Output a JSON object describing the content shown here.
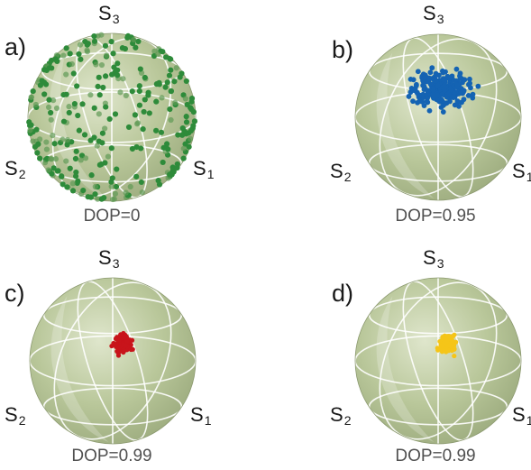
{
  "panels": [
    {
      "tag": "a)",
      "s3": "3",
      "s2": "2",
      "s1": "1",
      "axis_letter": "S",
      "dop": "DOP=0",
      "dot_color": "#2e8b3a",
      "distribution": "uniform-sphere"
    },
    {
      "tag": "b)",
      "s3": "3",
      "s2": "2",
      "s1": "1",
      "axis_letter": "S",
      "dop": "DOP=0.95",
      "dot_color": "#1463b3",
      "distribution": "cluster-wide"
    },
    {
      "tag": "c)",
      "s3": "3",
      "s2": "2",
      "s1": "1",
      "axis_letter": "S",
      "dop": "DOP=0.99",
      "dot_color": "#c8141b",
      "distribution": "cluster-tight"
    },
    {
      "tag": "d)",
      "s3": "3",
      "s2": "2",
      "s1": "1",
      "axis_letter": "S",
      "dop": "DOP=0.99",
      "dot_color": "#f5c518",
      "distribution": "cluster-tight"
    }
  ],
  "colors": {
    "sphere": "#b9c79a",
    "grid": "#ffffff",
    "text": "#1a1a1a",
    "caption": "#505050"
  }
}
